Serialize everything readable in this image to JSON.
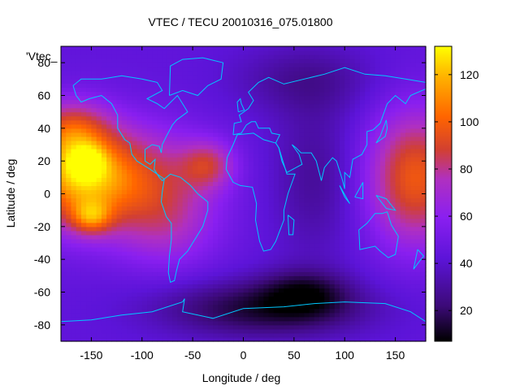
{
  "chart_data": {
    "type": "heatmap",
    "title": "VTEC / TECU 20010316_075.01800",
    "xlabel": "Longitude / deg",
    "ylabel": "Latitude / deg",
    "legend_label": "'Vtec_",
    "xlim": [
      -180,
      180
    ],
    "ylim": [
      -90,
      90
    ],
    "xticks": [
      -150,
      -100,
      -50,
      0,
      50,
      100,
      150
    ],
    "yticks": [
      -80,
      -60,
      -40,
      -20,
      0,
      20,
      40,
      60,
      80
    ],
    "colorbar": {
      "min": 7,
      "max": 132,
      "ticks": [
        20,
        40,
        60,
        80,
        100,
        120
      ]
    },
    "colormap": [
      "#000000",
      "#3c0a78",
      "#5c14d8",
      "#8a1ff0",
      "#b030c0",
      "#d24030",
      "#ff6400",
      "#ffb400",
      "#ffff00"
    ],
    "coastline_color": "#00c8ff",
    "field_blobs": [
      {
        "lon": -165,
        "lat": 12,
        "sigma_lon": 38,
        "sigma_lat": 22,
        "amp": 70
      },
      {
        "lon": -155,
        "lat": 19,
        "sigma_lon": 12,
        "sigma_lat": 7,
        "amp": 38
      },
      {
        "lon": -150,
        "lat": -14,
        "sigma_lon": 14,
        "sigma_lat": 7,
        "amp": 36
      },
      {
        "lon": -95,
        "lat": 8,
        "sigma_lon": 45,
        "sigma_lat": 22,
        "amp": 38
      },
      {
        "lon": -170,
        "lat": 40,
        "sigma_lon": 25,
        "sigma_lat": 12,
        "amp": 30
      },
      {
        "lon": -35,
        "lat": 18,
        "sigma_lon": 18,
        "sigma_lat": 10,
        "amp": 32
      },
      {
        "lon": -75,
        "lat": -22,
        "sigma_lon": 35,
        "sigma_lat": 18,
        "amp": 18
      },
      {
        "lon": 170,
        "lat": 10,
        "sigma_lon": 32,
        "sigma_lat": 28,
        "amp": 55
      },
      {
        "lon": 20,
        "lat": -70,
        "sigma_lon": 70,
        "sigma_lat": 12,
        "amp": -26
      },
      {
        "lon": 60,
        "lat": -60,
        "sigma_lon": 30,
        "sigma_lat": 10,
        "amp": -20
      },
      {
        "lon": 70,
        "lat": 10,
        "sigma_lon": 30,
        "sigma_lat": 35,
        "amp": -12
      },
      {
        "lon": 60,
        "lat": 70,
        "sigma_lon": 50,
        "sigma_lat": 15,
        "amp": -12
      }
    ],
    "field_base": 40
  }
}
